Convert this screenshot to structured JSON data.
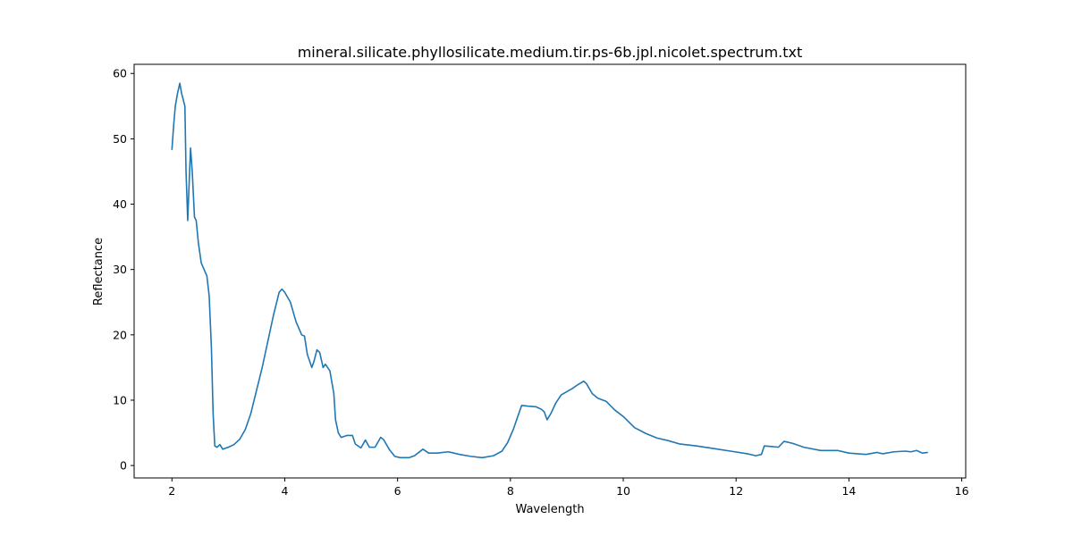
{
  "chart_data": {
    "type": "line",
    "title": "mineral.silicate.phyllosilicate.medium.tir.ps-6b.jpl.nicolet.spectrum.txt",
    "x_label": "Wavelength",
    "y_label": "Reflectance",
    "x": [
      2.0,
      2.03,
      2.06,
      2.1,
      2.14,
      2.17,
      2.2,
      2.23,
      2.25,
      2.28,
      2.3,
      2.33,
      2.36,
      2.4,
      2.43,
      2.47,
      2.52,
      2.57,
      2.62,
      2.66,
      2.7,
      2.73,
      2.76,
      2.8,
      2.85,
      2.9,
      3.0,
      3.1,
      3.2,
      3.3,
      3.4,
      3.5,
      3.6,
      3.7,
      3.8,
      3.9,
      3.95,
      4.0,
      4.1,
      4.2,
      4.3,
      4.35,
      4.4,
      4.48,
      4.52,
      4.57,
      4.62,
      4.68,
      4.72,
      4.8,
      4.87,
      4.9,
      4.95,
      5.0,
      5.1,
      5.2,
      5.25,
      5.35,
      5.43,
      5.5,
      5.6,
      5.7,
      5.75,
      5.85,
      5.95,
      6.05,
      6.2,
      6.3,
      6.45,
      6.55,
      6.7,
      6.9,
      7.1,
      7.3,
      7.5,
      7.7,
      7.85,
      7.95,
      8.05,
      8.15,
      8.2,
      8.3,
      8.45,
      8.55,
      8.6,
      8.65,
      8.72,
      8.8,
      8.9,
      9.0,
      9.1,
      9.2,
      9.3,
      9.35,
      9.45,
      9.55,
      9.7,
      9.85,
      10.0,
      10.2,
      10.4,
      10.6,
      10.8,
      11.0,
      11.3,
      11.6,
      11.9,
      12.2,
      12.35,
      12.45,
      12.5,
      12.65,
      12.75,
      12.85,
      13.0,
      13.2,
      13.5,
      13.8,
      14.0,
      14.3,
      14.5,
      14.6,
      14.8,
      15.0,
      15.1,
      15.2,
      15.3,
      15.4
    ],
    "series": [
      {
        "name": "Reflectance",
        "color": "#1f77b4",
        "values": [
          48.3,
          52,
          55,
          57,
          58.5,
          57,
          56,
          55,
          45,
          37.5,
          42,
          48.6,
          45,
          38,
          37.5,
          34,
          31,
          30,
          29,
          26,
          18,
          8,
          3,
          2.8,
          3.2,
          2.5,
          2.8,
          3.2,
          4,
          5.5,
          8,
          11.5,
          15,
          19,
          23,
          26.5,
          27,
          26.5,
          25,
          22,
          20,
          19.8,
          17,
          15,
          16,
          17.7,
          17.3,
          15,
          15.5,
          14.5,
          11,
          7,
          5,
          4.3,
          4.6,
          4.6,
          3.3,
          2.7,
          3.9,
          2.8,
          2.8,
          4.3,
          4,
          2.5,
          1.4,
          1.2,
          1.2,
          1.5,
          2.5,
          1.9,
          1.9,
          2.1,
          1.7,
          1.4,
          1.2,
          1.5,
          2.2,
          3.5,
          5.5,
          8,
          9.2,
          9.1,
          9,
          8.6,
          8.2,
          7,
          8,
          9.5,
          10.8,
          11.3,
          11.8,
          12.4,
          12.9,
          12.5,
          11,
          10.3,
          9.8,
          8.5,
          7.5,
          5.8,
          4.9,
          4.2,
          3.8,
          3.3,
          3,
          2.6,
          2.2,
          1.8,
          1.5,
          1.7,
          3,
          2.9,
          2.8,
          3.7,
          3.4,
          2.8,
          2.3,
          2.3,
          1.9,
          1.7,
          2,
          1.8,
          2.1,
          2.2,
          2.1,
          2.3,
          1.9,
          2.0
        ]
      }
    ],
    "xlim": [
      1.33,
      16.07
    ],
    "ylim": [
      -1.9,
      61.4
    ],
    "xticks": [
      2,
      4,
      6,
      8,
      10,
      12,
      14,
      16
    ],
    "yticks": [
      0,
      10,
      20,
      30,
      40,
      50,
      60
    ],
    "grid": false
  }
}
